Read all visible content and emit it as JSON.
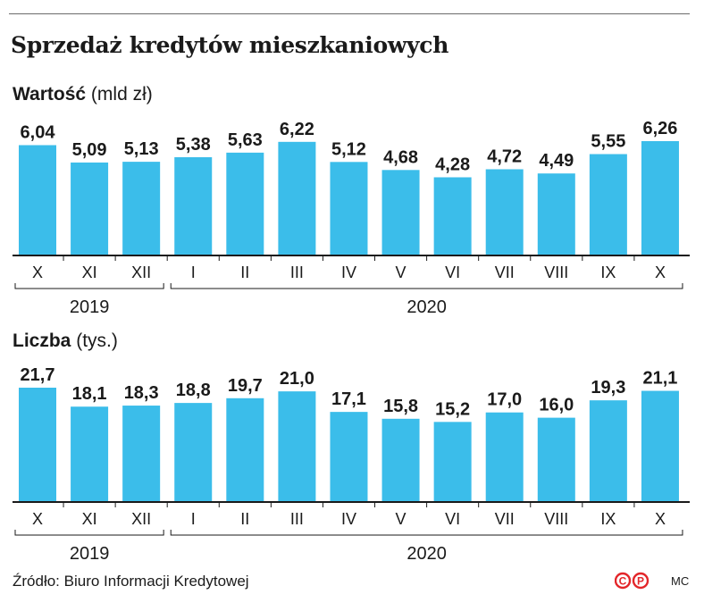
{
  "title": "Sprzedaż kredytów mieszkaniowych",
  "source": "Źródło: Biuro Informacji Kredytowej",
  "author_initials": "MC",
  "logo_text": "CP",
  "colors": {
    "bar": "#3bbdea",
    "axis": "#1a1a1a",
    "logo": "#e3262a"
  },
  "chart_data": [
    {
      "type": "bar",
      "name": "Wartość",
      "unit": "(mld zł)",
      "categories": [
        "X",
        "XI",
        "XII",
        "I",
        "II",
        "III",
        "IV",
        "V",
        "VI",
        "VII",
        "VIII",
        "IX",
        "X"
      ],
      "values": [
        6.04,
        5.09,
        5.13,
        5.38,
        5.63,
        6.22,
        5.12,
        4.68,
        4.28,
        4.72,
        4.49,
        5.55,
        6.26
      ],
      "labels": [
        "6,04",
        "5,09",
        "5,13",
        "5,38",
        "5,63",
        "6,22",
        "5,12",
        "4,68",
        "4,28",
        "4,72",
        "4,49",
        "5,55",
        "6,26"
      ],
      "ylim": [
        0,
        6.26
      ],
      "groups": [
        {
          "label": "2019",
          "from": 0,
          "to": 2
        },
        {
          "label": "2020",
          "from": 3,
          "to": 12
        }
      ]
    },
    {
      "type": "bar",
      "name": "Liczba",
      "unit": "(tys.)",
      "categories": [
        "X",
        "XI",
        "XII",
        "I",
        "II",
        "III",
        "IV",
        "V",
        "VI",
        "VII",
        "VIII",
        "IX",
        "X"
      ],
      "values": [
        21.7,
        18.1,
        18.3,
        18.8,
        19.7,
        21.0,
        17.1,
        15.8,
        15.2,
        17.0,
        16.0,
        19.3,
        21.1
      ],
      "labels": [
        "21,7",
        "18,1",
        "18,3",
        "18,8",
        "19,7",
        "21,0",
        "17,1",
        "15,8",
        "15,2",
        "17,0",
        "16,0",
        "19,3",
        "21,1"
      ],
      "ylim": [
        0,
        21.7
      ],
      "groups": [
        {
          "label": "2019",
          "from": 0,
          "to": 2
        },
        {
          "label": "2020",
          "from": 3,
          "to": 12
        }
      ]
    }
  ]
}
